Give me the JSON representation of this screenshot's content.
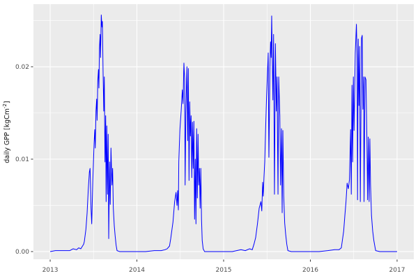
{
  "figure": {
    "background": "#FFFFFF"
  },
  "chart_data": {
    "type": "line",
    "title": "",
    "xlabel": "",
    "ylabel": "daily GPP [kgCm^-2]",
    "ylabel_parts": {
      "prefix": "daily GPP [kgCm",
      "superscript": "-2",
      "suffix": "]"
    },
    "x_tick_values": [
      2013,
      2014,
      2015,
      2016,
      2017
    ],
    "x_tick_labels": [
      "2013",
      "2014",
      "2015",
      "2016",
      "2017"
    ],
    "x_minor_tick_values": [
      2013.5,
      2014.5,
      2015.5,
      2016.5
    ],
    "y_tick_values": [
      0.0,
      0.01,
      0.02
    ],
    "y_tick_labels": [
      "0.00",
      "0.01",
      "0.02"
    ],
    "y_minor_tick_values": [
      0.005,
      0.015,
      0.025
    ],
    "xlim": [
      2012.807,
      2017.193
    ],
    "ylim": [
      -0.00083,
      0.02677
    ],
    "grid": true,
    "legend": "none",
    "colors": {
      "line": "#0000FF",
      "panel_bg": "#EBEBEB",
      "grid": "#FFFFFF",
      "tick_mark": "#333333",
      "tick_text": "#4D4D4D"
    },
    "series": [
      {
        "name": "daily GPP",
        "x_unit": "decimal_year",
        "points": [
          [
            2013.0,
            0
          ],
          [
            2013.06,
            0.0001
          ],
          [
            2013.12,
            0.0001
          ],
          [
            2013.18,
            0.0001
          ],
          [
            2013.225,
            0.0001
          ],
          [
            2013.265,
            0.0003
          ],
          [
            2013.305,
            0.0002
          ],
          [
            2013.329,
            0.0004
          ],
          [
            2013.353,
            0.0003
          ],
          [
            2013.386,
            0.0008
          ],
          [
            2013.394,
            0.0011
          ],
          [
            2013.412,
            0.0024
          ],
          [
            2013.426,
            0.0042
          ],
          [
            2013.439,
            0.0067
          ],
          [
            2013.452,
            0.0086
          ],
          [
            2013.46,
            0.009
          ],
          [
            2013.471,
            0.0047
          ],
          [
            2013.479,
            0.003
          ],
          [
            2013.492,
            0.0077
          ],
          [
            2013.506,
            0.0117
          ],
          [
            2013.514,
            0.0132
          ],
          [
            2013.52,
            0.0112
          ],
          [
            2013.528,
            0.0152
          ],
          [
            2013.536,
            0.0165
          ],
          [
            2013.541,
            0.0142
          ],
          [
            2013.549,
            0.0185
          ],
          [
            2013.557,
            0.0197
          ],
          [
            2013.562,
            0.0177
          ],
          [
            2013.568,
            0.022
          ],
          [
            2013.576,
            0.0235
          ],
          [
            2013.581,
            0.021
          ],
          [
            2013.589,
            0.0256
          ],
          [
            2013.597,
            0.0243
          ],
          [
            2013.602,
            0.0249
          ],
          [
            2013.61,
            0.0194
          ],
          [
            2013.618,
            0.0152
          ],
          [
            2013.624,
            0.0189
          ],
          [
            2013.632,
            0.0097
          ],
          [
            2013.64,
            0.0147
          ],
          [
            2013.645,
            0.0054
          ],
          [
            2013.653,
            0.0136
          ],
          [
            2013.661,
            0.0062
          ],
          [
            2013.669,
            0.0127
          ],
          [
            2013.675,
            0.0014
          ],
          [
            2013.685,
            0.0097
          ],
          [
            2013.693,
            0.0051
          ],
          [
            2013.701,
            0.0112
          ],
          [
            2013.712,
            0.0072
          ],
          [
            2013.72,
            0.009
          ],
          [
            2013.728,
            0.0047
          ],
          [
            2013.739,
            0.0028
          ],
          [
            2013.749,
            0.0017
          ],
          [
            2013.76,
            0.0007
          ],
          [
            2013.771,
            0.0001
          ],
          [
            2013.8,
            0
          ],
          [
            2013.9,
            0
          ],
          [
            2014.0,
            0
          ],
          [
            2014.1,
            0
          ],
          [
            2014.2,
            0.0001
          ],
          [
            2014.28,
            0.0001
          ],
          [
            2014.323,
            0.0002
          ],
          [
            2014.349,
            0.0003
          ],
          [
            2014.376,
            0.0006
          ],
          [
            2014.39,
            0.0014
          ],
          [
            2014.416,
            0.0032
          ],
          [
            2014.435,
            0.0054
          ],
          [
            2014.451,
            0.0064
          ],
          [
            2014.462,
            0.005
          ],
          [
            2014.47,
            0.0066
          ],
          [
            2014.478,
            0.0045
          ],
          [
            2014.483,
            0.0097
          ],
          [
            2014.496,
            0.0132
          ],
          [
            2014.51,
            0.0152
          ],
          [
            2014.524,
            0.0175
          ],
          [
            2014.532,
            0.016
          ],
          [
            2014.542,
            0.0204
          ],
          [
            2014.55,
            0.0187
          ],
          [
            2014.556,
            0.0072
          ],
          [
            2014.564,
            0.015
          ],
          [
            2014.577,
            0.02
          ],
          [
            2014.585,
            0.012
          ],
          [
            2014.593,
            0.0198
          ],
          [
            2014.601,
            0.0077
          ],
          [
            2014.609,
            0.0162
          ],
          [
            2014.617,
            0.0125
          ],
          [
            2014.625,
            0.0147
          ],
          [
            2014.633,
            0.008
          ],
          [
            2014.641,
            0.014
          ],
          [
            2014.649,
            0.009
          ],
          [
            2014.657,
            0.0141
          ],
          [
            2014.665,
            0.0035
          ],
          [
            2014.673,
            0.01
          ],
          [
            2014.681,
            0.003
          ],
          [
            2014.689,
            0.0133
          ],
          [
            2014.697,
            0.0058
          ],
          [
            2014.705,
            0.0127
          ],
          [
            2014.713,
            0.0072
          ],
          [
            2014.721,
            0.009
          ],
          [
            2014.729,
            0.0047
          ],
          [
            2014.737,
            0.009
          ],
          [
            2014.745,
            0.0035
          ],
          [
            2014.753,
            0.0012
          ],
          [
            2014.764,
            0.0003
          ],
          [
            2014.78,
            0
          ],
          [
            2014.88,
            0
          ],
          [
            2015.0,
            0
          ],
          [
            2015.1,
            0
          ],
          [
            2015.2,
            0.0002
          ],
          [
            2015.25,
            0.0001
          ],
          [
            2015.3,
            0.0003
          ],
          [
            2015.33,
            0.0002
          ],
          [
            2015.35,
            0.0008
          ],
          [
            2015.369,
            0.0015
          ],
          [
            2015.39,
            0.003
          ],
          [
            2015.41,
            0.0047
          ],
          [
            2015.43,
            0.0054
          ],
          [
            2015.44,
            0.0044
          ],
          [
            2015.45,
            0.0075
          ],
          [
            2015.457,
            0.006
          ],
          [
            2015.465,
            0.008
          ],
          [
            2015.474,
            0.0097
          ],
          [
            2015.484,
            0.0132
          ],
          [
            2015.495,
            0.0167
          ],
          [
            2015.514,
            0.0215
          ],
          [
            2015.522,
            0.0102
          ],
          [
            2015.528,
            0.015
          ],
          [
            2015.533,
            0.0197
          ],
          [
            2015.541,
            0.0227
          ],
          [
            2015.548,
            0.021
          ],
          [
            2015.554,
            0.0255
          ],
          [
            2015.568,
            0.0164
          ],
          [
            2015.576,
            0.0235
          ],
          [
            2015.586,
            0.0062
          ],
          [
            2015.597,
            0.0225
          ],
          [
            2015.608,
            0.0152
          ],
          [
            2015.616,
            0.0189
          ],
          [
            2015.627,
            0.0062
          ],
          [
            2015.635,
            0.0189
          ],
          [
            2015.648,
            0.0147
          ],
          [
            2015.656,
            0.0072
          ],
          [
            2015.667,
            0.0133
          ],
          [
            2015.675,
            0.0042
          ],
          [
            2015.683,
            0.0131
          ],
          [
            2015.693,
            0.006
          ],
          [
            2015.704,
            0.0031
          ],
          [
            2015.715,
            0.0019
          ],
          [
            2015.728,
            0.0008
          ],
          [
            2015.741,
            0.0001
          ],
          [
            2015.78,
            0
          ],
          [
            2015.9,
            0
          ],
          [
            2016.0,
            0
          ],
          [
            2016.1,
            0
          ],
          [
            2016.2,
            0.0001
          ],
          [
            2016.28,
            0.0002
          ],
          [
            2016.33,
            0.0002
          ],
          [
            2016.357,
            0.0004
          ],
          [
            2016.384,
            0.0022
          ],
          [
            2016.398,
            0.0039
          ],
          [
            2016.411,
            0.0054
          ],
          [
            2016.424,
            0.0074
          ],
          [
            2016.438,
            0.0068
          ],
          [
            2016.451,
            0.0078
          ],
          [
            2016.464,
            0.0132
          ],
          [
            2016.472,
            0.0062
          ],
          [
            2016.48,
            0.018
          ],
          [
            2016.488,
            0.0097
          ],
          [
            2016.496,
            0.0189
          ],
          [
            2016.504,
            0.0131
          ],
          [
            2016.518,
            0.0215
          ],
          [
            2016.531,
            0.0246
          ],
          [
            2016.539,
            0.0209
          ],
          [
            2016.544,
            0.0056
          ],
          [
            2016.552,
            0.023
          ],
          [
            2016.56,
            0.0158
          ],
          [
            2016.568,
            0.0222
          ],
          [
            2016.576,
            0.0054
          ],
          [
            2016.59,
            0.0231
          ],
          [
            2016.598,
            0.0234
          ],
          [
            2016.606,
            0.0154
          ],
          [
            2016.614,
            0.0189
          ],
          [
            2016.619,
            0.0054
          ],
          [
            2016.63,
            0.0189
          ],
          [
            2016.641,
            0.0186
          ],
          [
            2016.652,
            0.0122
          ],
          [
            2016.66,
            0.0056
          ],
          [
            2016.668,
            0.0124
          ],
          [
            2016.678,
            0.0054
          ],
          [
            2016.686,
            0.0122
          ],
          [
            2016.694,
            0.0072
          ],
          [
            2016.705,
            0.0039
          ],
          [
            2016.719,
            0.0022
          ],
          [
            2016.732,
            0.0012
          ],
          [
            2016.745,
            0.0005
          ],
          [
            2016.753,
            0.0001
          ],
          [
            2016.8,
            0
          ],
          [
            2016.9,
            0
          ],
          [
            2017.0,
            0
          ]
        ]
      }
    ]
  }
}
